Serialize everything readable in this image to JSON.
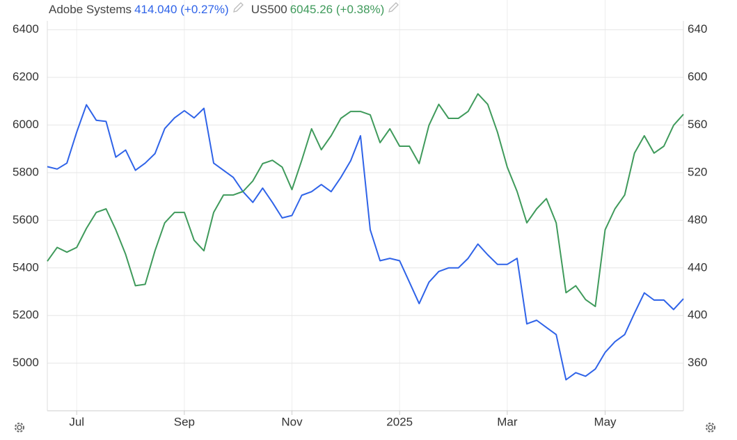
{
  "chart_data": {
    "type": "line",
    "categories": [
      null,
      null,
      null,
      "Jul",
      null,
      null,
      null,
      null,
      null,
      null,
      null,
      null,
      null,
      null,
      "Sep",
      null,
      null,
      null,
      null,
      null,
      null,
      null,
      null,
      null,
      null,
      "Nov",
      null,
      null,
      null,
      null,
      null,
      null,
      null,
      null,
      null,
      null,
      "2025",
      null,
      null,
      null,
      null,
      null,
      null,
      null,
      null,
      null,
      null,
      "Mar",
      null,
      null,
      null,
      null,
      null,
      null,
      null,
      null,
      null,
      "May",
      null,
      null,
      null,
      null,
      null,
      null,
      null,
      null
    ],
    "series": [
      {
        "name": "Adobe Systems",
        "last_label": "414.040 (+0.27%)",
        "color": "#2f63e8",
        "axis": "y2",
        "values": [
          525,
          523,
          528,
          554,
          577,
          564,
          563,
          533,
          539,
          522,
          528,
          536,
          557,
          566,
          572,
          566,
          574,
          528,
          522,
          516,
          504,
          495,
          507,
          495,
          482,
          484,
          501,
          504,
          510,
          504,
          516,
          530,
          551,
          472,
          446,
          448,
          446,
          428,
          410,
          428,
          437,
          440,
          440,
          448,
          460,
          451,
          443,
          443,
          448,
          393,
          396,
          390,
          384,
          346,
          352,
          349,
          355,
          369,
          378,
          384,
          402,
          419,
          413,
          413,
          405,
          414
        ]
      },
      {
        "name": "US500",
        "last_label": "6045.26 (+0.38%)",
        "color": "#3f9a5b",
        "values": [
          5428,
          5486,
          5466,
          5486,
          5566,
          5633,
          5648,
          5560,
          5457,
          5325,
          5331,
          5472,
          5589,
          5633,
          5633,
          5516,
          5472,
          5633,
          5706,
          5706,
          5721,
          5765,
          5838,
          5852,
          5823,
          5729,
          5852,
          5984,
          5896,
          5955,
          6028,
          6057,
          6057,
          6043,
          5926,
          5984,
          5911,
          5911,
          5838,
          5999,
          6087,
          6028,
          6028,
          6057,
          6131,
          6087,
          5970,
          5823,
          5721,
          5589,
          5648,
          5691,
          5589,
          5296,
          5325,
          5267,
          5238,
          5560,
          5648,
          5706,
          5882,
          5955,
          5882,
          5911,
          5999,
          6045
        ]
      }
    ],
    "ylim": [
      4800,
      6525
    ],
    "yticks": [
      5000,
      5200,
      5400,
      5600,
      5800,
      6000,
      6200,
      6400
    ],
    "y2lim": [
      320,
      665
    ],
    "y2ticks": [
      360,
      400,
      440,
      480,
      520,
      560,
      600,
      640
    ],
    "grid": true
  }
}
